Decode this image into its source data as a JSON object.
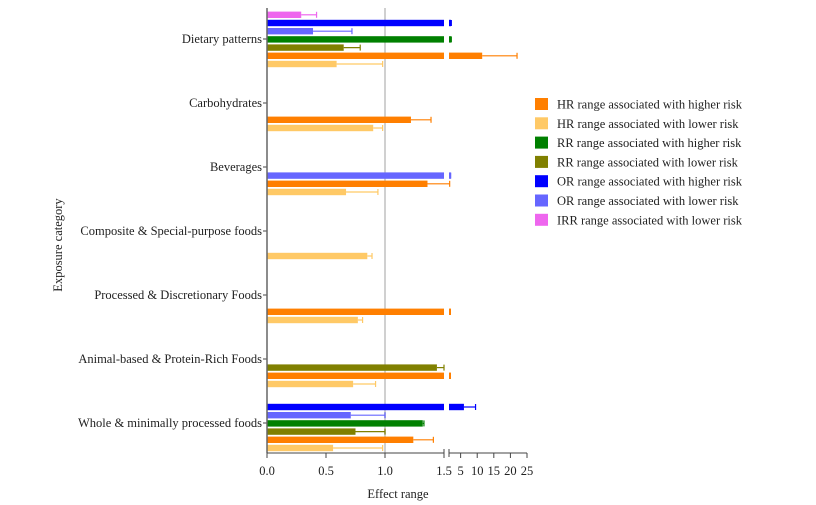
{
  "chart_data": {
    "type": "bar",
    "orientation": "horizontal",
    "xlabel": "Effect range",
    "ylabel": "Exposure category",
    "x_axis": {
      "segment1": {
        "range": [
          0,
          1.5
        ],
        "ticks": [
          "0.0",
          "0.5",
          "1.0",
          "1.5"
        ]
      },
      "segment2": {
        "range": [
          1.5,
          25
        ],
        "ticks": [
          "5",
          "10",
          "15",
          "20",
          "25"
        ]
      },
      "reference_line": 1.0
    },
    "series": [
      {
        "key": "HRh",
        "name": "HR range associated with higher risk",
        "color": "#FF7F00"
      },
      {
        "key": "HRl",
        "name": "HR range associated with lower risk",
        "color": "#FFC966"
      },
      {
        "key": "RRh",
        "name": "RR range associated with higher risk",
        "color": "#008000"
      },
      {
        "key": "RRl",
        "name": "RR range associated with lower risk",
        "color": "#808000"
      },
      {
        "key": "ORh",
        "name": "OR range associated with higher risk",
        "color": "#0000FF"
      },
      {
        "key": "ORl",
        "name": "OR range associated with lower risk",
        "color": "#6666FF"
      },
      {
        "key": "IRRl",
        "name": "IRR range associated with lower risk",
        "color": "#EE66EE"
      }
    ],
    "categories": [
      {
        "name": "Dietary patterns",
        "bars": [
          {
            "series": "IRRl",
            "value": 0.29,
            "upper": 0.42
          },
          {
            "series": "ORh",
            "value": 1.6,
            "upper": 2.2
          },
          {
            "series": "ORl",
            "value": 0.39,
            "upper": 0.72
          },
          {
            "series": "RRh",
            "value": 1.6,
            "upper": 2.2
          },
          {
            "series": "RRl",
            "value": 0.65,
            "upper": 0.79
          },
          {
            "series": "HRh",
            "value": 11.5,
            "upper": 22
          },
          {
            "series": "HRl",
            "value": 0.59,
            "upper": 0.98
          }
        ]
      },
      {
        "name": "Carbohydrates",
        "bars": [
          {
            "series": "HRh",
            "value": 1.22,
            "upper": 1.39
          },
          {
            "series": "HRl",
            "value": 0.9,
            "upper": 0.98
          }
        ]
      },
      {
        "name": "Beverages",
        "bars": [
          {
            "series": "ORl",
            "value": 1.6,
            "upper": 2.0
          },
          {
            "series": "HRh",
            "value": 1.36,
            "upper": 1.7
          },
          {
            "series": "HRl",
            "value": 0.67,
            "upper": 0.94
          }
        ]
      },
      {
        "name": "Composite & Special-purpose foods",
        "bars": [
          {
            "series": "HRl",
            "value": 0.85,
            "upper": 0.89
          }
        ]
      },
      {
        "name": "Processed & Discretionary Foods",
        "bars": [
          {
            "series": "HRh",
            "value": 1.6,
            "upper": 1.8
          },
          {
            "series": "HRl",
            "value": 0.77,
            "upper": 0.81
          }
        ]
      },
      {
        "name": "Animal-based & Protein-Rich Foods",
        "bars": [
          {
            "series": "RRl",
            "value": 1.44,
            "upper": 1.5
          },
          {
            "series": "HRh",
            "value": 1.6,
            "upper": 1.8
          },
          {
            "series": "HRl",
            "value": 0.73,
            "upper": 0.92
          }
        ]
      },
      {
        "name": "Whole & minimally processed foods",
        "bars": [
          {
            "series": "ORh",
            "value": 6,
            "upper": 9.5
          },
          {
            "series": "ORl",
            "value": 0.71,
            "upper": 1.0
          },
          {
            "series": "RRh",
            "value": 1.32,
            "upper": 1.33
          },
          {
            "series": "RRl",
            "value": 0.75,
            "upper": 1.0
          },
          {
            "series": "HRh",
            "value": 1.24,
            "upper": 1.41
          },
          {
            "series": "HRl",
            "value": 0.56,
            "upper": 0.98
          }
        ]
      }
    ],
    "legend_position": "right"
  }
}
